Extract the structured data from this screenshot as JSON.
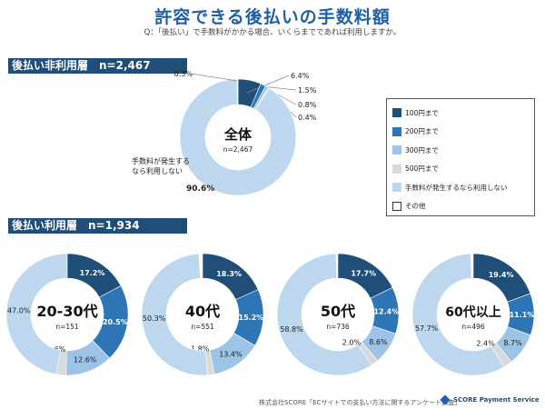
{
  "title": "許容できる後払いの手数料額",
  "question": "Q：「後払い」で手数料がかかる場合、いくらまでであれば利用しますか。",
  "colors": {
    "100": "#1f4e79",
    "200": "#2e75b6",
    "300": "#9dc3e6",
    "500": "#d9d9d9",
    "none": "#bdd7ee",
    "other": "#ffffff"
  },
  "sections": {
    "nonusers": "後払い非利用層　n=2,467",
    "users": "後払い利用層　n=1,934"
  },
  "legend": [
    {
      "key": "100",
      "label": "100円まで"
    },
    {
      "key": "200",
      "label": "200円まで"
    },
    {
      "key": "300",
      "label": "300円まで"
    },
    {
      "key": "500",
      "label": "500円まで"
    },
    {
      "key": "none",
      "label": "手数料が発生するなら利用しない"
    },
    {
      "key": "other",
      "label": "その他"
    }
  ],
  "chart_data": [
    {
      "type": "pie",
      "title": "全体",
      "n": "n=2,467",
      "categories": [
        "100円まで",
        "200円まで",
        "300円まで",
        "500円まで",
        "手数料が発生するなら利用しない",
        "その他"
      ],
      "values": [
        6.4,
        1.5,
        0.8,
        0.4,
        90.6,
        0.3
      ],
      "labels": [
        "6.4%",
        "1.5%",
        "0.8%",
        "0.4%",
        "90.6%",
        "0.3%"
      ],
      "annotation": "手数料が発生する\nなら利用しない"
    },
    {
      "type": "pie",
      "title": "20-30代",
      "n": "n=151",
      "categories": [
        "100円まで",
        "200円まで",
        "300円まで",
        "500円まで",
        "手数料が発生するなら利用しない"
      ],
      "values": [
        17.2,
        20.5,
        12.6,
        2.6,
        47.0
      ],
      "labels": [
        "17.2%",
        "20.5%",
        "12.6%",
        "2.6%",
        "47.0%"
      ]
    },
    {
      "type": "pie",
      "title": "40代",
      "n": "n=551",
      "categories": [
        "100円まで",
        "200円まで",
        "300円まで",
        "500円まで",
        "手数料が発生するなら利用しない"
      ],
      "values": [
        18.3,
        15.2,
        13.4,
        1.8,
        50.3
      ],
      "labels": [
        "18.3%",
        "15.2%",
        "13.4%",
        "1.8%",
        "50.3%"
      ]
    },
    {
      "type": "pie",
      "title": "50代",
      "n": "n=736",
      "categories": [
        "100円まで",
        "200円まで",
        "300円まで",
        "500円まで",
        "手数料が発生するなら利用しない"
      ],
      "values": [
        17.7,
        12.4,
        8.6,
        2.0,
        58.8
      ],
      "labels": [
        "17.7%",
        "12.4%",
        "8.6%",
        "2.0%",
        "58.8%"
      ]
    },
    {
      "type": "pie",
      "title": "60代以上",
      "n": "n=496",
      "categories": [
        "100円まで",
        "200円まで",
        "300円まで",
        "500円まで",
        "手数料が発生するなら利用しない"
      ],
      "values": [
        19.4,
        11.1,
        8.7,
        2.4,
        57.7
      ],
      "labels": [
        "19.4%",
        "11.1%",
        "8.7%",
        "2.4%",
        "57.7%"
      ]
    }
  ],
  "footer": {
    "source": "株式会社SCORE「ECサイトでの支払い方法に関するアンケート調査」",
    "brand": "SCORE Payment Service"
  }
}
